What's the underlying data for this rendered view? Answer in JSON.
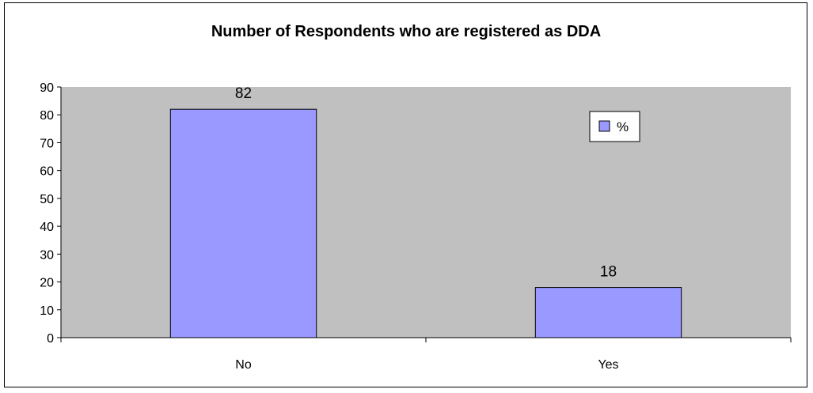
{
  "chart_data": {
    "type": "bar",
    "title": "Number of Respondents who are registered as DDA",
    "xlabel": "",
    "ylabel": "",
    "categories": [
      "No",
      "Yes"
    ],
    "series": [
      {
        "name": "%",
        "values": [
          82,
          18
        ]
      }
    ],
    "data_labels": [
      "82",
      "18"
    ],
    "ylim": [
      0,
      90
    ],
    "yticks": [
      0,
      10,
      20,
      30,
      40,
      50,
      60,
      70,
      80,
      90
    ],
    "grid": false,
    "legend": "top-right",
    "colors": {
      "bar": "#9999ff",
      "plot_background": "#c0c0c0",
      "outline": "#000000"
    }
  }
}
